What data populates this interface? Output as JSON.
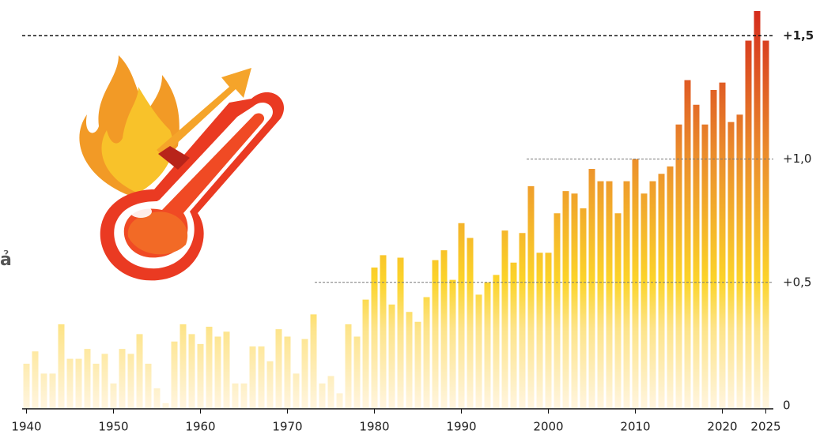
{
  "chart_data": {
    "type": "bar",
    "annotation": "ả",
    "x": [
      1940,
      1941,
      1942,
      1943,
      1944,
      1945,
      1946,
      1947,
      1948,
      1949,
      1950,
      1951,
      1952,
      1953,
      1954,
      1955,
      1956,
      1957,
      1958,
      1959,
      1960,
      1961,
      1962,
      1963,
      1964,
      1965,
      1966,
      1967,
      1968,
      1969,
      1970,
      1971,
      1972,
      1973,
      1974,
      1975,
      1976,
      1977,
      1978,
      1979,
      1980,
      1981,
      1982,
      1983,
      1984,
      1985,
      1986,
      1987,
      1988,
      1989,
      1990,
      1991,
      1992,
      1993,
      1994,
      1995,
      1996,
      1997,
      1998,
      1999,
      2000,
      2001,
      2002,
      2003,
      2004,
      2005,
      2006,
      2007,
      2008,
      2009,
      2010,
      2011,
      2012,
      2013,
      2014,
      2015,
      2016,
      2017,
      2018,
      2019,
      2020,
      2021,
      2022,
      2023,
      2024,
      2025
    ],
    "values": [
      0.17,
      0.22,
      0.13,
      0.13,
      0.33,
      0.19,
      0.19,
      0.23,
      0.17,
      0.21,
      0.09,
      0.23,
      0.21,
      0.29,
      0.17,
      0.07,
      0.01,
      0.26,
      0.33,
      0.29,
      0.25,
      0.32,
      0.28,
      0.3,
      0.09,
      0.09,
      0.24,
      0.24,
      0.18,
      0.31,
      0.28,
      0.13,
      0.27,
      0.37,
      0.09,
      0.12,
      0.05,
      0.33,
      0.28,
      0.43,
      0.56,
      0.61,
      0.41,
      0.6,
      0.38,
      0.34,
      0.44,
      0.59,
      0.63,
      0.51,
      0.74,
      0.68,
      0.45,
      0.5,
      0.53,
      0.71,
      0.58,
      0.7,
      0.89,
      0.62,
      0.62,
      0.78,
      0.87,
      0.86,
      0.8,
      0.96,
      0.91,
      0.91,
      0.78,
      0.91,
      1.0,
      0.86,
      0.91,
      0.94,
      0.97,
      1.14,
      1.32,
      1.22,
      1.14,
      1.28,
      1.31,
      1.15,
      1.18,
      1.48,
      1.6,
      1.48
    ],
    "gradient": [
      "#fff5df",
      "#fde48a",
      "#fcd42a",
      "#ea8a2c",
      "#d42b1c"
    ],
    "xlim": [
      1939.5,
      2025.5
    ],
    "xticks": [
      1940,
      1950,
      1960,
      1970,
      1980,
      1990,
      2000,
      2010,
      2020,
      2025
    ],
    "ylim": [
      0,
      1.6
    ],
    "yticks": [
      0,
      {
        "value": 0.5,
        "label": "+0,5"
      },
      {
        "value": 1.0,
        "label": "+1,0"
      },
      {
        "value": 1.5,
        "label": "+1,5"
      }
    ],
    "grid": true
  }
}
